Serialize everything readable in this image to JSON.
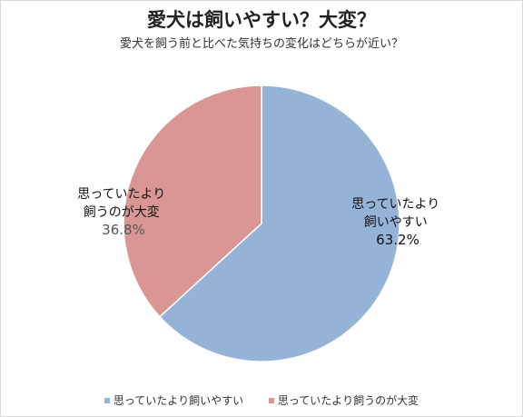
{
  "chart_data": {
    "type": "pie",
    "title": "愛犬は飼いやすい？大変？",
    "subtitle": "愛犬を飼う前と比べた気持ちの変化はどちらが近い？",
    "slices": [
      {
        "name": "思っていたより飼いやすい",
        "label_lines": [
          "思っていたより",
          "飼いやすい"
        ],
        "value": 63.2,
        "value_label": "63.2%",
        "color": "#95b3d7"
      },
      {
        "name": "思っていたより飼うのが大変",
        "label_lines": [
          "思っていたより",
          "飼うのが大変"
        ],
        "value": 36.8,
        "value_label": "36.8%",
        "color": "#d99694"
      }
    ],
    "legend_position": "bottom"
  }
}
